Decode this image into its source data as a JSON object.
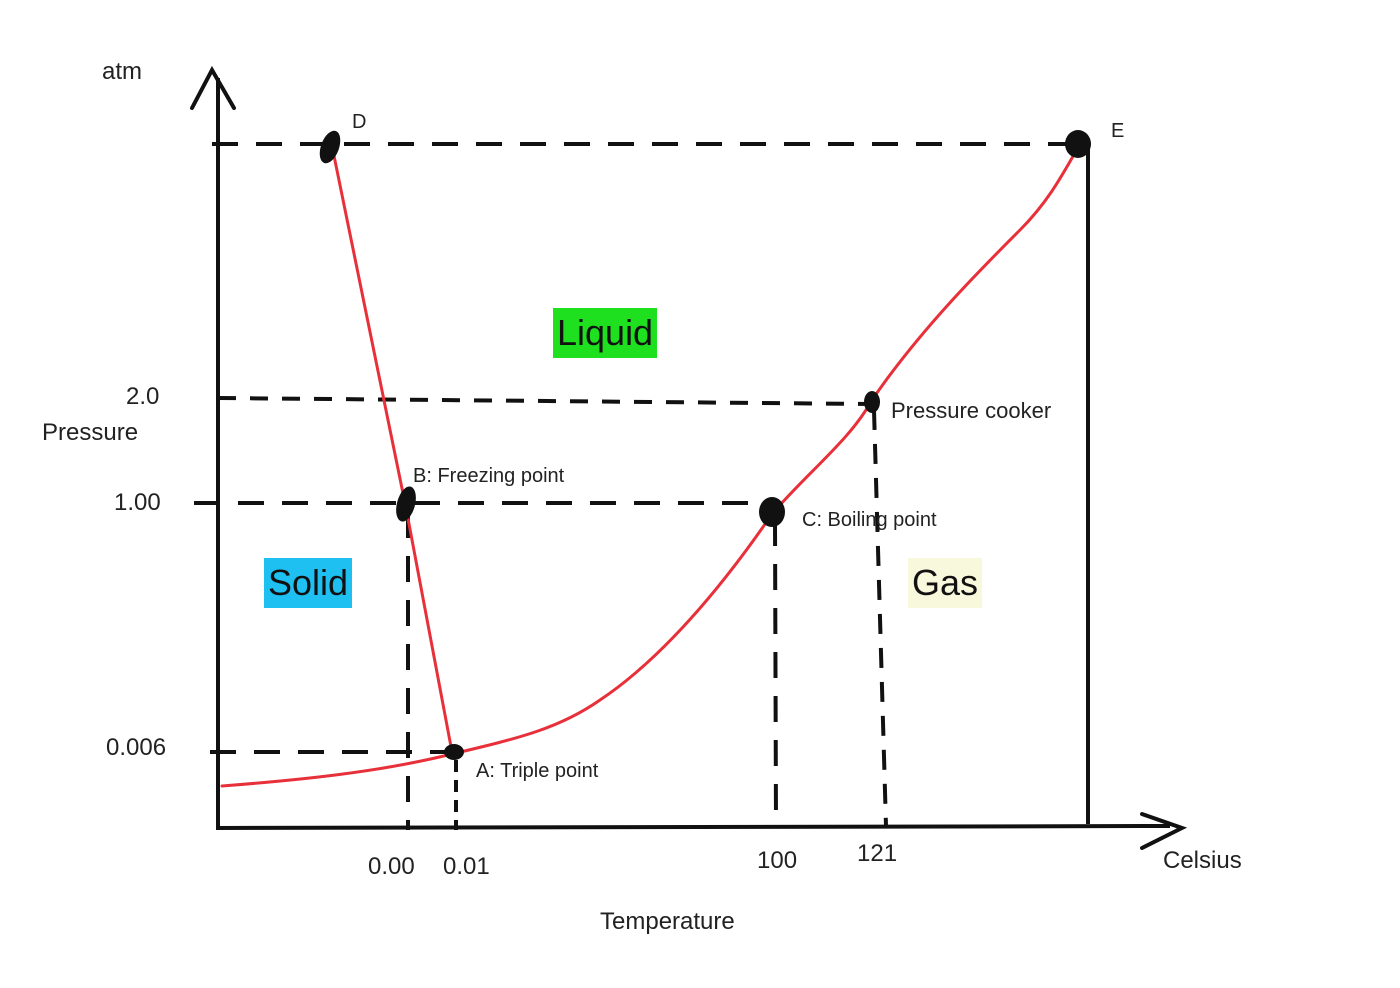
{
  "axes": {
    "y_unit": "atm",
    "y_title": "Pressure",
    "x_title": "Temperature",
    "x_unit": "Celsius",
    "y_ticks": [
      "2.0",
      "1.00",
      "0.006"
    ],
    "x_ticks": [
      "0.00",
      "0.01",
      "100",
      "121"
    ]
  },
  "points": {
    "d": "D",
    "e": "E",
    "a": "A: Triple point",
    "b": "B: Freezing point",
    "c": "C: Boiling point",
    "p": "Pressure cooker"
  },
  "regions": {
    "solid": "Solid",
    "liquid": "Liquid",
    "gas": "Gas"
  },
  "colors": {
    "curve": "#e8303a",
    "solid_bg": "#1ec0f2",
    "liquid_bg": "#1fe01f",
    "gas_bg": "#f8f8dc",
    "ink": "#111111"
  },
  "icons": {
    "y_arrow": "arrow-up-icon",
    "x_arrow": "arrow-right-icon"
  }
}
